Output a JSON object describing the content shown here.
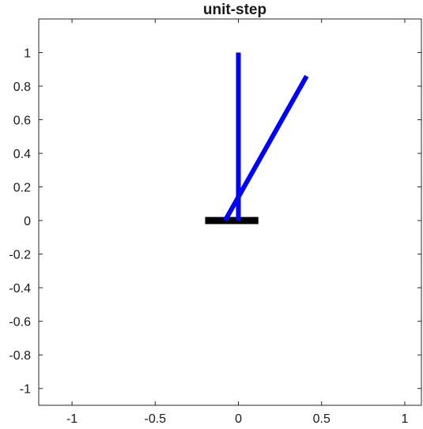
{
  "chart_data": {
    "type": "line",
    "title": "unit-step",
    "xlabel": "",
    "ylabel": "",
    "xlim": [
      -1.2,
      1.1
    ],
    "ylim": [
      -1.1,
      1.2
    ],
    "xticks": [
      -1,
      -0.5,
      0,
      0.5,
      1
    ],
    "xtick_labels": [
      "-1",
      "-0.5",
      "0",
      "0.5",
      "1"
    ],
    "yticks": [
      1,
      0.8,
      0.6,
      0.4,
      0.2,
      0,
      -0.2,
      -0.4,
      -0.6,
      -0.8,
      -1
    ],
    "ytick_labels": [
      "1",
      "0.8",
      "0.6",
      "0.4",
      "0.2",
      "0",
      "-0.2",
      "-0.4",
      "-0.6",
      "-0.8",
      "-1"
    ],
    "grid": false,
    "legend": "none",
    "series": [
      {
        "role": "cart",
        "color": "#000000",
        "x": [
          -0.2,
          0.12
        ],
        "y": [
          0,
          0
        ]
      },
      {
        "role": "pendulum-initial",
        "color": "#0000ff",
        "x": [
          0,
          0
        ],
        "y": [
          0,
          1
        ]
      },
      {
        "role": "pendulum-current",
        "color": "#0000ff",
        "x": [
          -0.08,
          0.41
        ],
        "y": [
          0,
          0.86
        ]
      }
    ]
  }
}
